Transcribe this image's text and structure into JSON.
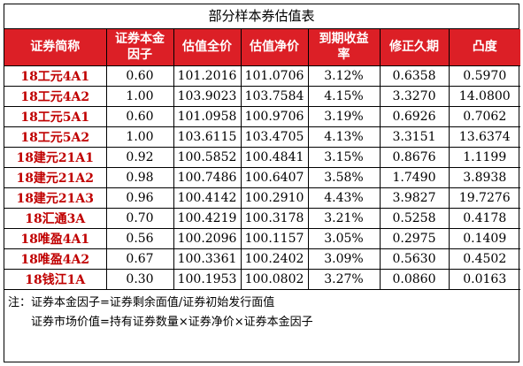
{
  "title": "部分样本券估值表",
  "header": {
    "name": "证券简称",
    "factor_line1": "证券本金",
    "factor_line2": "因子",
    "full_price": "估值全价",
    "net_price": "估值净价",
    "ytm_line1": "到期收益",
    "ytm_line2": "率",
    "duration": "修正久期",
    "convexity": "凸度"
  },
  "rows": [
    {
      "name": "18工元4A1",
      "factor": "0.60",
      "full_price": "101.2016",
      "net_price": "101.0706",
      "ytm": "3.12%",
      "duration": "0.6358",
      "convexity": "0.5970"
    },
    {
      "name": "18工元4A2",
      "factor": "1.00",
      "full_price": "103.9023",
      "net_price": "103.7584",
      "ytm": "4.15%",
      "duration": "3.3270",
      "convexity": "14.0800"
    },
    {
      "name": "18工元5A1",
      "factor": "0.60",
      "full_price": "101.0958",
      "net_price": "100.9706",
      "ytm": "3.19%",
      "duration": "0.6926",
      "convexity": "0.7062"
    },
    {
      "name": "18工元5A2",
      "factor": "1.00",
      "full_price": "103.6115",
      "net_price": "103.4705",
      "ytm": "4.13%",
      "duration": "3.3151",
      "convexity": "13.6374"
    },
    {
      "name": "18建元21A1",
      "factor": "0.92",
      "full_price": "100.5852",
      "net_price": "100.4841",
      "ytm": "3.15%",
      "duration": "0.8676",
      "convexity": "1.1199"
    },
    {
      "name": "18建元21A2",
      "factor": "0.98",
      "full_price": "100.7486",
      "net_price": "100.6407",
      "ytm": "3.58%",
      "duration": "1.7490",
      "convexity": "3.8938"
    },
    {
      "name": "18建元21A3",
      "factor": "0.96",
      "full_price": "100.4142",
      "net_price": "100.2910",
      "ytm": "4.43%",
      "duration": "3.9827",
      "convexity": "19.7276"
    },
    {
      "name": "18汇通3A",
      "factor": "0.70",
      "full_price": "100.4219",
      "net_price": "100.3178",
      "ytm": "3.21%",
      "duration": "0.5258",
      "convexity": "0.4178"
    },
    {
      "name": "18唯盈4A1",
      "factor": "0.56",
      "full_price": "100.2096",
      "net_price": "100.1157",
      "ytm": "3.05%",
      "duration": "0.2975",
      "convexity": "0.1409"
    },
    {
      "name": "18唯盈4A2",
      "factor": "0.67",
      "full_price": "100.3361",
      "net_price": "100.2402",
      "ytm": "3.09%",
      "duration": "0.5630",
      "convexity": "0.4502"
    },
    {
      "name": "18钱江1A",
      "factor": "0.30",
      "full_price": "100.1953",
      "net_price": "100.0802",
      "ytm": "3.27%",
      "duration": "0.0860",
      "convexity": "0.0163"
    }
  ],
  "notes": {
    "line1": "注：证券本金因子=证券剩余面值/证券初始发行面值",
    "line2": "证券市场价值=持有证券数量×证券净价×证券本金因子"
  },
  "colors": {
    "header_bg": "#dc1f26",
    "header_text": "#ffffff",
    "name_text": "#c00000"
  }
}
